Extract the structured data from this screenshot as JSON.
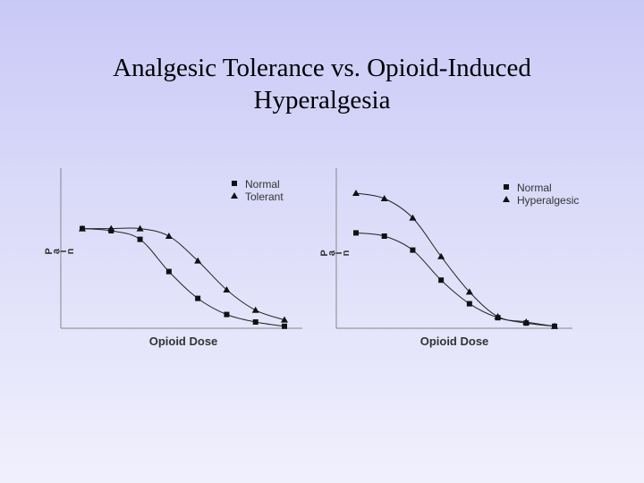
{
  "slide": {
    "title_line1": "Analgesic Tolerance vs. Opioid-Induced",
    "title_line2": "Hyperalgesia"
  },
  "chart_data": [
    {
      "type": "line",
      "xlabel": "Opioid Dose",
      "ylabel": "Pain",
      "x": [
        1,
        2,
        3,
        4,
        5,
        6,
        7,
        8
      ],
      "series": [
        {
          "name": "Normal",
          "marker": "square",
          "values": [
            0.92,
            0.9,
            0.82,
            0.52,
            0.27,
            0.12,
            0.05,
            0.01
          ]
        },
        {
          "name": "Tolerant",
          "marker": "triangle",
          "values": [
            0.92,
            0.92,
            0.92,
            0.85,
            0.62,
            0.35,
            0.16,
            0.07
          ]
        }
      ],
      "legend": "top-right",
      "grid": false
    },
    {
      "type": "line",
      "xlabel": "Opioid Dose",
      "ylabel": "Pain",
      "x": [
        1,
        2,
        3,
        4,
        5,
        6,
        7,
        8
      ],
      "series": [
        {
          "name": "Normal",
          "marker": "square",
          "values": [
            0.88,
            0.85,
            0.72,
            0.44,
            0.22,
            0.09,
            0.04,
            0.01
          ]
        },
        {
          "name": "Hyperalgesic",
          "marker": "triangle",
          "values": [
            1.25,
            1.2,
            1.02,
            0.66,
            0.33,
            0.1,
            0.05,
            0.01
          ]
        }
      ],
      "legend": "top-right",
      "grid": false
    }
  ]
}
